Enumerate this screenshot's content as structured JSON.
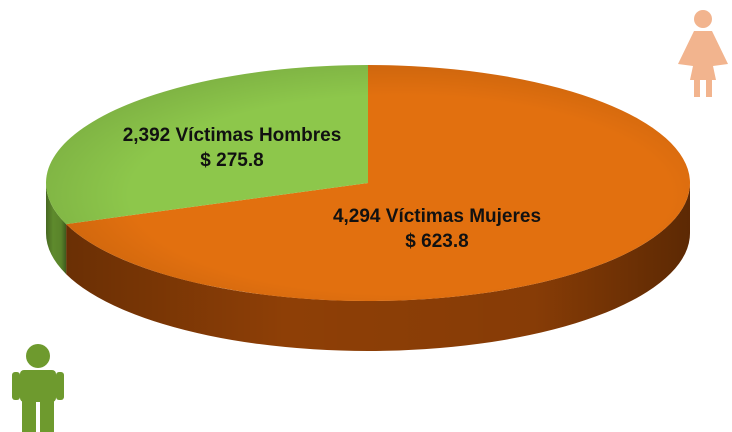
{
  "chart_data": {
    "type": "pie",
    "title": "",
    "style": "3d-oblique",
    "slices": [
      {
        "label": "4,294 Víctimas Mujeres",
        "amount_text": "$ 623.8",
        "victims": 4294,
        "value": 623.8,
        "color": "#E2700F",
        "side_color": "#8E3F06"
      },
      {
        "label": "2,392 Víctimas Hombres",
        "amount_text": "$ 275.8",
        "victims": 2392,
        "value": 275.8,
        "color": "#8DC74B",
        "side_color": "#5E8A2C"
      }
    ]
  },
  "icons": {
    "female": {
      "name": "female-figure-icon",
      "color": "#F2B48E"
    },
    "male": {
      "name": "male-figure-icon",
      "color": "#6E9A2E"
    }
  }
}
